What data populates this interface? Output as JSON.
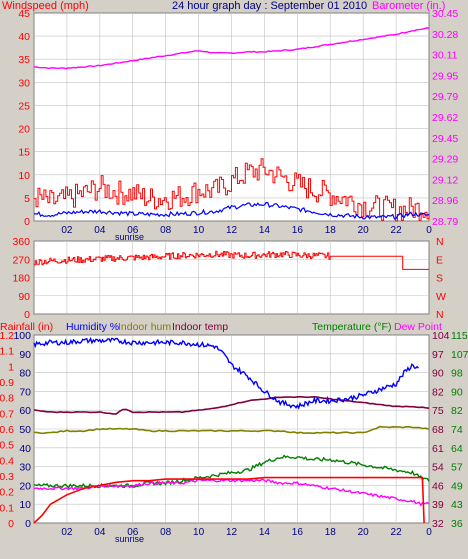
{
  "header": {
    "title": "24 hour graph day : September 01 2010",
    "left_label": "Windspeed (mph)",
    "right_label": "Barometer (in.)"
  },
  "colors": {
    "wind": "#ff0000",
    "gust": "#ff0000",
    "avg": "#0000ff",
    "baro": "#ff00ff",
    "dir": "#ff0000",
    "humidity": "#0000ff",
    "indoor_hum": "#808000",
    "indoor_temp": "#800040",
    "temperature": "#008000",
    "dewpoint": "#ff00ff",
    "rainfall": "#ff0000",
    "grid": "#c0c0c0",
    "panel": "#ffffff",
    "bg": "#d4d0c8"
  },
  "chart_data": [
    {
      "type": "line",
      "name": "wind-barometer",
      "title": "24 hour graph day : September 01 2010",
      "x_ticks": [
        "02",
        "04",
        "06",
        "08",
        "10",
        "12",
        "14",
        "16",
        "18",
        "20",
        "22",
        "0"
      ],
      "x_extra_label": "sunrise",
      "xlim": [
        0,
        24
      ],
      "ylabel_left": "Windspeed (mph)",
      "ylabel_right": "Barometer (in.)",
      "y_left_ticks": [
        "0",
        "5",
        "10",
        "15",
        "20",
        "25",
        "30",
        "35",
        "40",
        "45"
      ],
      "y_left_lim": [
        0,
        47
      ],
      "y_right_ticks": [
        "28.79",
        "28.96",
        "29.12",
        "29.29",
        "29.45",
        "29.62",
        "29.79",
        "29.95",
        "30.11",
        "30.28",
        "30.45"
      ],
      "y_right_lim": [
        28.79,
        30.45
      ],
      "series": [
        {
          "axis": "right",
          "role": "baro",
          "x": [
            0,
            1,
            2,
            3,
            4,
            5,
            6,
            7,
            8,
            9,
            10,
            10.5,
            11,
            12,
            13,
            14,
            15,
            16,
            17,
            18,
            19,
            20,
            21,
            22,
            23,
            24
          ],
          "y": [
            30.02,
            30.01,
            30.01,
            30.02,
            30.03,
            30.05,
            30.07,
            30.09,
            30.11,
            30.13,
            30.15,
            30.14,
            30.13,
            30.13,
            30.14,
            30.14,
            30.15,
            30.16,
            30.18,
            30.2,
            30.22,
            30.24,
            30.26,
            30.28,
            30.31,
            30.33
          ]
        },
        {
          "axis": "left",
          "role": "gust",
          "x": [
            0,
            1,
            2,
            3,
            4,
            5,
            6,
            7,
            8,
            9,
            10,
            11,
            12,
            13,
            14,
            15,
            16,
            17,
            18,
            19,
            20,
            21,
            22,
            23,
            24
          ],
          "y": [
            5.5,
            4.2,
            5.0,
            6.3,
            7.6,
            6.5,
            6.2,
            5.0,
            5.2,
            5.6,
            7.0,
            6.8,
            9.0,
            11.0,
            11.6,
            10.0,
            8.2,
            7.0,
            6.0,
            5.0,
            3.6,
            3.0,
            2.5,
            2.8,
            3.0
          ]
        },
        {
          "axis": "left",
          "role": "avg",
          "x": [
            0,
            1,
            2,
            3,
            4,
            5,
            6,
            7,
            8,
            9,
            10,
            11,
            12,
            13,
            14,
            15,
            16,
            17,
            18,
            19,
            20,
            21,
            22,
            23,
            24
          ],
          "y": [
            1.6,
            1.4,
            1.8,
            2.1,
            2.2,
            1.9,
            1.6,
            1.5,
            1.5,
            1.6,
            1.9,
            2.2,
            3.1,
            3.6,
            3.8,
            3.3,
            2.7,
            2.1,
            1.5,
            1.2,
            0.9,
            0.8,
            1.0,
            1.6,
            1.3
          ]
        }
      ]
    },
    {
      "type": "line",
      "name": "wind-direction",
      "xlim": [
        0,
        24
      ],
      "y_left_ticks": [
        "0",
        "90",
        "180",
        "270",
        "360"
      ],
      "y_left_lim": [
        0,
        360
      ],
      "y_right_ticks": [
        "N",
        "W",
        "S",
        "E",
        "N"
      ],
      "series": [
        {
          "role": "dir",
          "x": [
            0,
            1,
            2,
            3,
            4,
            5,
            6,
            7,
            8,
            9,
            10,
            11,
            12,
            13,
            14,
            15,
            16,
            17,
            18,
            19,
            20,
            21,
            22,
            22.4,
            22.6,
            24
          ],
          "y": [
            255,
            262,
            266,
            268,
            272,
            275,
            278,
            280,
            284,
            289,
            291,
            295,
            290,
            288,
            292,
            295,
            290,
            288,
            285,
            285,
            285,
            285,
            285,
            220,
            220,
            220
          ]
        }
      ]
    },
    {
      "type": "line",
      "name": "rain-humidity-temperature",
      "x_ticks": [
        "02",
        "04",
        "06",
        "08",
        "10",
        "12",
        "14",
        "16",
        "18",
        "20",
        "22",
        "0"
      ],
      "x_extra_label": "sunrise",
      "xlim": [
        0,
        24
      ],
      "legend": [
        "Rainfall (in)",
        "Humidity %",
        "Indoor hum",
        "Indoor temp",
        "Temperature (°F)",
        "Dew Point"
      ],
      "y_rain_ticks": [
        "0",
        "0.1",
        "0.2",
        "0.3",
        "0.4",
        "0.5",
        "0.6",
        "0.7",
        "0.8",
        "0.9",
        "1",
        "1.1",
        "1.2"
      ],
      "y_rain_lim": [
        0,
        1.2
      ],
      "y_hum_ticks": [
        "0",
        "10",
        "20",
        "30",
        "40",
        "50",
        "60",
        "70",
        "80",
        "90",
        "100"
      ],
      "y_hum_lim": [
        0,
        100
      ],
      "y_right_ticks": [
        "32",
        "39",
        "46",
        "54",
        "61",
        "68",
        "75",
        "82",
        "90",
        "97",
        "104"
      ],
      "y_right_lim": [
        32,
        104
      ],
      "y_right2_ticks": [
        "36",
        "43",
        "49",
        "57",
        "64",
        "74",
        "82",
        "90",
        "98",
        "107",
        "115"
      ],
      "series": [
        {
          "role": "humidity",
          "x": [
            0,
            1,
            2,
            3,
            4,
            5,
            6,
            7,
            8,
            9,
            10,
            11,
            11.5,
            12,
            13,
            14,
            15,
            16,
            17,
            18,
            19,
            20,
            21,
            22,
            22.5,
            23,
            23.4
          ],
          "y": [
            95,
            96,
            96,
            97,
            97,
            97,
            96,
            96,
            96,
            96,
            95,
            94,
            90,
            84,
            78,
            70,
            64,
            62,
            65,
            65,
            66,
            68,
            71,
            74,
            80,
            84,
            82
          ]
        },
        {
          "role": "indoor_hum",
          "x": [
            0,
            1,
            2,
            3,
            4,
            5,
            6,
            7,
            8,
            9,
            10,
            11,
            12,
            13,
            14,
            15,
            16,
            17,
            18,
            19,
            20,
            21,
            22,
            23,
            24
          ],
          "y": [
            48,
            48,
            49,
            49,
            50,
            50,
            50,
            49,
            49,
            49,
            49,
            49,
            49,
            49,
            49,
            49,
            48,
            48,
            48,
            48,
            48,
            51,
            51,
            51,
            50
          ]
        },
        {
          "role": "indoor_temp",
          "x": [
            0,
            1,
            2,
            3,
            4,
            5,
            5.5,
            6,
            7,
            8,
            9,
            10,
            11,
            12,
            13,
            14,
            15,
            16,
            17,
            18,
            19,
            20,
            21,
            22,
            23,
            24
          ],
          "y": [
            85,
            84,
            84,
            84,
            84,
            83,
            86,
            84,
            84,
            84,
            84,
            85,
            86,
            88,
            90,
            91,
            92,
            92,
            92,
            91,
            90,
            89,
            88,
            87,
            87,
            86
          ]
        },
        {
          "role": "temperature",
          "x": [
            0,
            1,
            2,
            3,
            4,
            5,
            6,
            7,
            8,
            9,
            10,
            11,
            12,
            13,
            14,
            15,
            16,
            17,
            18,
            19,
            20,
            21,
            22,
            23,
            23.5,
            24
          ],
          "y": [
            47,
            47,
            47,
            47,
            47,
            47,
            47,
            48,
            48,
            49,
            50,
            51,
            52,
            53,
            56,
            58,
            58,
            57,
            57,
            56,
            55,
            54,
            53,
            52,
            50,
            49
          ]
        },
        {
          "role": "dewpoint",
          "x": [
            0,
            1,
            2,
            3,
            4,
            5,
            6,
            7,
            8,
            9,
            10,
            11,
            12,
            13,
            14,
            15,
            16,
            17,
            18,
            19,
            20,
            21,
            22,
            23,
            23.5,
            24
          ],
          "y": [
            46,
            46,
            46,
            46,
            47,
            47,
            47,
            48,
            48,
            48,
            49,
            49,
            49,
            49,
            49,
            48,
            48,
            47,
            46,
            45,
            44,
            43,
            42,
            41,
            40,
            40
          ]
        },
        {
          "role": "rainfall",
          "x": [
            0,
            0.5,
            1,
            2,
            3,
            4,
            5,
            6,
            7,
            8,
            9,
            10,
            11,
            12,
            13,
            14,
            15,
            16,
            17,
            18,
            19,
            20,
            21,
            22,
            23,
            23.6,
            23.7
          ],
          "y": [
            0.0,
            0.05,
            0.12,
            0.18,
            0.22,
            0.24,
            0.26,
            0.27,
            0.27,
            0.28,
            0.28,
            0.28,
            0.28,
            0.28,
            0.28,
            0.29,
            0.29,
            0.29,
            0.29,
            0.29,
            0.29,
            0.29,
            0.29,
            0.29,
            0.29,
            0.29,
            0.0
          ]
        }
      ]
    }
  ]
}
